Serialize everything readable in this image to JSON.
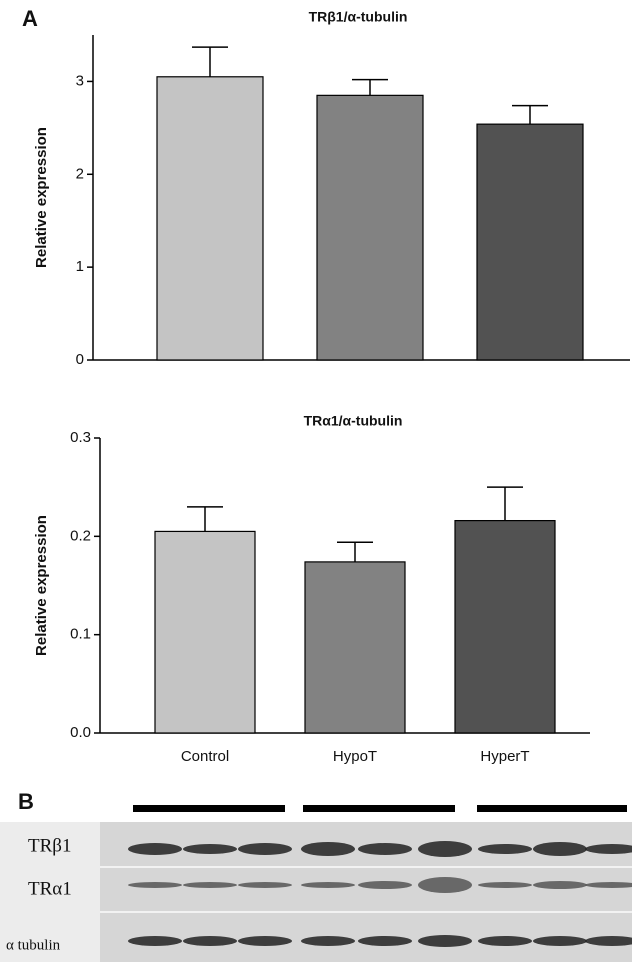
{
  "panel_labels": [
    "A",
    "B"
  ],
  "chart_data": [
    {
      "type": "bar",
      "title": "TRβ1/α-tubulin",
      "y_label": "Relative expression",
      "categories": [
        null,
        null,
        null
      ],
      "values": [
        3.05,
        2.85,
        2.54
      ],
      "errors": [
        0.32,
        0.17,
        0.2
      ],
      "colors": [
        "#c4c4c4",
        "#828282",
        "#525252"
      ],
      "ylim": [
        0,
        3.5
      ],
      "yticks": [
        0,
        1,
        2,
        3
      ]
    },
    {
      "type": "bar",
      "title": "TRα1/α-tubulin",
      "y_label": "Relative expression",
      "categories": [
        "Control",
        "HypoT",
        "HyperT"
      ],
      "values": [
        0.205,
        0.174,
        0.216
      ],
      "errors": [
        0.025,
        0.02,
        0.034
      ],
      "colors": [
        "#c4c4c4",
        "#828282",
        "#525252"
      ],
      "ylim": [
        0,
        0.3
      ],
      "yticks": [
        {
          "value": 0,
          "label": "0.0"
        },
        0.1,
        0.2,
        0.3
      ]
    }
  ],
  "blot": {
    "rows": [
      "TRβ1",
      "TRα1",
      "α tubulin"
    ]
  }
}
